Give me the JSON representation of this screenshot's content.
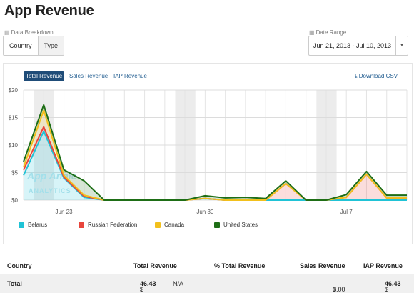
{
  "page": {
    "title": "App Revenue"
  },
  "breakdown": {
    "label": "Data Breakdown",
    "options": [
      "Country",
      "Type"
    ],
    "selected": "Country"
  },
  "date_range": {
    "label": "Date Range",
    "value": "Jun 21, 2013 - Jul 10, 2013"
  },
  "tabs": [
    "Total Revenue",
    "Sales Revenue",
    "IAP Revenue"
  ],
  "active_tab": "Total Revenue",
  "download_label": "Download CSV",
  "watermark": {
    "line1": "App Annie",
    "line2": "ANALYTICS"
  },
  "chart_data": {
    "type": "area",
    "x": [
      "Jun 21",
      "Jun 22",
      "Jun 23",
      "Jun 24",
      "Jun 25",
      "Jun 26",
      "Jun 27",
      "Jun 28",
      "Jun 29",
      "Jun 30",
      "Jul 1",
      "Jul 2",
      "Jul 3",
      "Jul 4",
      "Jul 5",
      "Jul 6",
      "Jul 7",
      "Jul 8",
      "Jul 9",
      "Jul 10"
    ],
    "x_tick_labels": [
      {
        "index": 2,
        "label": "Jun 23"
      },
      {
        "index": 9,
        "label": "Jun 30"
      },
      {
        "index": 16,
        "label": "Jul 7"
      }
    ],
    "y_ticks": [
      "$0",
      "$5",
      "$10",
      "$15",
      "$20"
    ],
    "ylim": [
      0,
      20
    ],
    "stacked": true,
    "weekend_indices": [
      1,
      8,
      15
    ],
    "series": [
      {
        "name": "Belarus",
        "color": "#20c3d6",
        "values": [
          4.5,
          12.5,
          4,
          0.5,
          0,
          0,
          0,
          0,
          0,
          0.3,
          0,
          0,
          0,
          0,
          0,
          0,
          0,
          0,
          0,
          0
        ]
      },
      {
        "name": "Russian Federation",
        "color": "#e8453c",
        "values": [
          1,
          0.8,
          0.2,
          0.2,
          0,
          0,
          0,
          0,
          0,
          0,
          0,
          0,
          0,
          3,
          0,
          0,
          0.5,
          4.7,
          0.4,
          0.4
        ]
      },
      {
        "name": "Canada",
        "color": "#f2c01c",
        "values": [
          0.5,
          3,
          0.3,
          0.2,
          0,
          0,
          0,
          0,
          0,
          0,
          0,
          0,
          0,
          0,
          0,
          0,
          0,
          0,
          0,
          0
        ]
      },
      {
        "name": "United States",
        "color": "#1e6e16",
        "values": [
          1,
          1,
          1,
          2.6,
          0,
          0,
          0,
          0,
          0,
          0.5,
          0.4,
          0.5,
          0.3,
          0.5,
          0,
          0,
          0.5,
          0.5,
          0.5,
          0.5
        ]
      }
    ],
    "grid": true,
    "legend_position": "bottom"
  },
  "table": {
    "headers": [
      "Country",
      "Total Revenue",
      "% Total Revenue",
      "Sales Revenue",
      "IAP Revenue"
    ],
    "total_row": {
      "label": "Total",
      "currency": "$",
      "total_revenue": "46.43",
      "pct": "N/A",
      "sales_revenue": "0.00",
      "iap_revenue": "46.43"
    }
  }
}
